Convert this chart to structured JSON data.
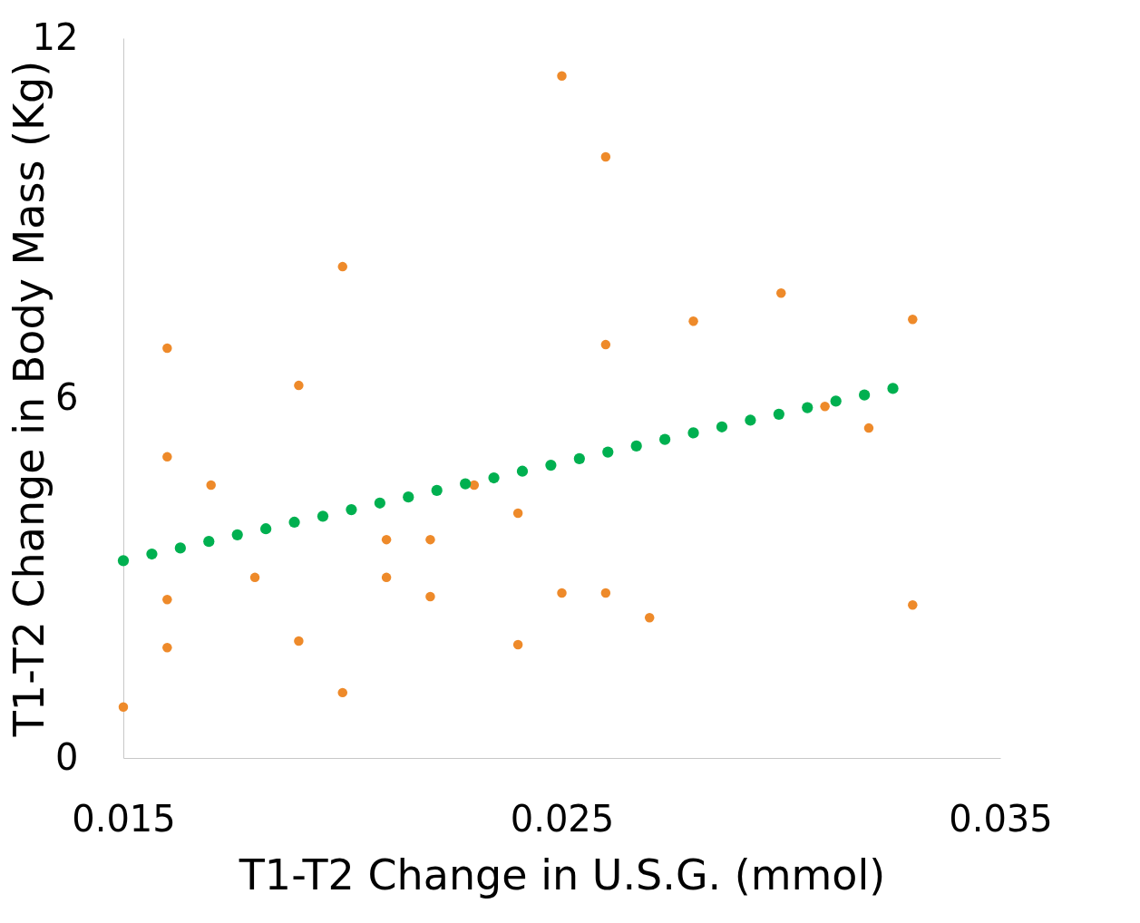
{
  "chart_data": {
    "type": "scatter",
    "xlabel": "T1-T2 Change in U.S.G. (mmol)",
    "ylabel": "T1-T2 Change in Body Mass (Kg)",
    "xlim": [
      0.015,
      0.035
    ],
    "xticks": [
      0.015,
      0.025,
      0.035
    ],
    "ylim": [
      0,
      12
    ],
    "yticks": [
      0,
      6,
      12
    ],
    "grid": false,
    "marker": "circle",
    "series": [
      {
        "color": "#ee8a2a",
        "x": [
          0.015,
          0.016,
          0.016,
          0.016,
          0.016,
          0.017,
          0.018,
          0.019,
          0.019,
          0.02,
          0.02,
          0.021,
          0.021,
          0.022,
          0.022,
          0.023,
          0.024,
          0.024,
          0.025,
          0.025,
          0.026,
          0.026,
          0.026,
          0.027,
          0.028,
          0.03,
          0.031,
          0.032,
          0.033,
          0.033
        ],
        "values": [
          0.85,
          6.83,
          5.02,
          2.64,
          1.84,
          4.55,
          3.01,
          6.21,
          1.95,
          8.19,
          1.09,
          3.64,
          3.01,
          3.64,
          2.69,
          4.55,
          4.08,
          1.89,
          11.37,
          2.75,
          10.02,
          6.89,
          2.75,
          2.34,
          7.28,
          7.75,
          5.86,
          5.5,
          7.31,
          2.55
        ]
      },
      {
        "color": "#00b050",
        "x": [
          0.015,
          0.01565,
          0.0163,
          0.01695,
          0.0176,
          0.01825,
          0.0189,
          0.01955,
          0.0202,
          0.02085,
          0.0215,
          0.02215,
          0.0228,
          0.02345,
          0.0241,
          0.02475,
          0.0254,
          0.02605,
          0.0267,
          0.02735,
          0.028,
          0.02865,
          0.0293,
          0.02995,
          0.0306,
          0.03125,
          0.0319,
          0.03255
        ],
        "values": [
          3.29,
          3.4,
          3.5,
          3.61,
          3.72,
          3.82,
          3.93,
          4.03,
          4.14,
          4.25,
          4.35,
          4.46,
          4.57,
          4.67,
          4.78,
          4.88,
          4.99,
          5.1,
          5.2,
          5.31,
          5.42,
          5.52,
          5.63,
          5.73,
          5.84,
          5.95,
          6.05,
          6.16
        ]
      }
    ]
  }
}
